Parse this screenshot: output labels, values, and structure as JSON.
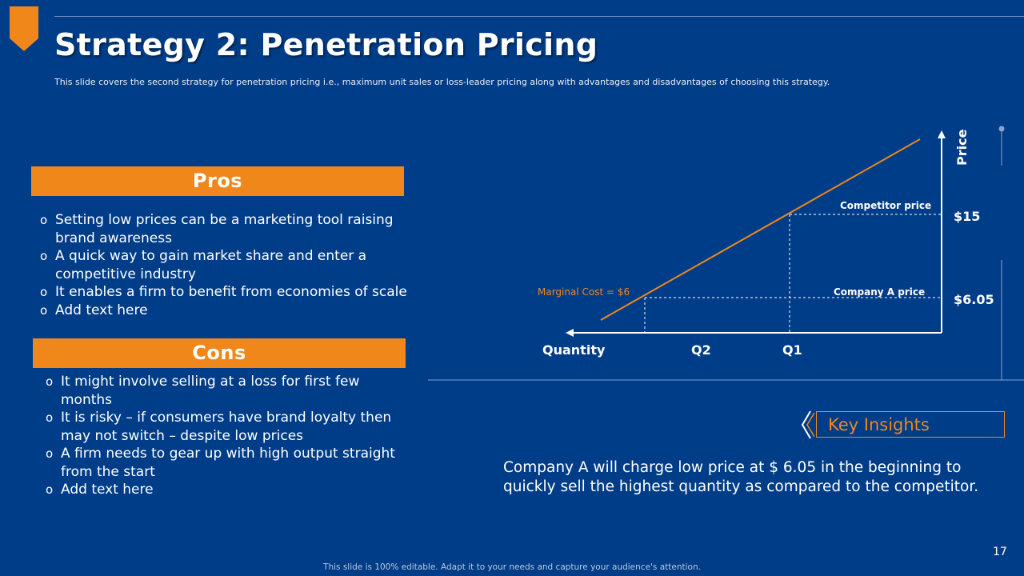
{
  "slide": {
    "title": "Strategy 2: Penetration Pricing",
    "subtitle": "This slide covers the second strategy for penetration  pricing i.e., maximum  unit sales or loss-leader pricing  along with advantages and disadvantages of choosing this strategy.",
    "page_number": "17",
    "footer": "This slide is 100% editable. Adapt it to your needs and capture your audience's attention.",
    "colors": {
      "background": "#003d88",
      "accent": "#f0871a",
      "text": "#ffffff"
    }
  },
  "pros": {
    "header": "Pros",
    "items": [
      "Setting low prices can be a marketing tool raising brand awareness",
      "A quick way to gain market share and enter a competitive industry",
      "It enables a firm to benefit from economies of scale",
      "Add text here"
    ]
  },
  "cons": {
    "header": "Cons",
    "items": [
      "It might involve selling at a loss for first few months",
      "It is risky – if consumers have brand loyalty then may not switch – despite low prices",
      "A firm needs to gear up with high output straight from the start",
      "Add text here"
    ]
  },
  "diagram": {
    "y_axis_label": "Price",
    "x_axis_label": "Quantity",
    "q2_label": "Q2",
    "q1_label": "Q1",
    "competitor_price_label": "Competitor price",
    "company_a_price_label": "Company A price",
    "marginal_cost_label": "Marginal Cost = $6",
    "price_high": "$15",
    "price_low": "$6.05"
  },
  "insights": {
    "label": "Key Insights",
    "text": "Company A will charge low price at $ 6.05 in the beginning  to quickly sell the highest quantity as compared  to the competitor."
  }
}
